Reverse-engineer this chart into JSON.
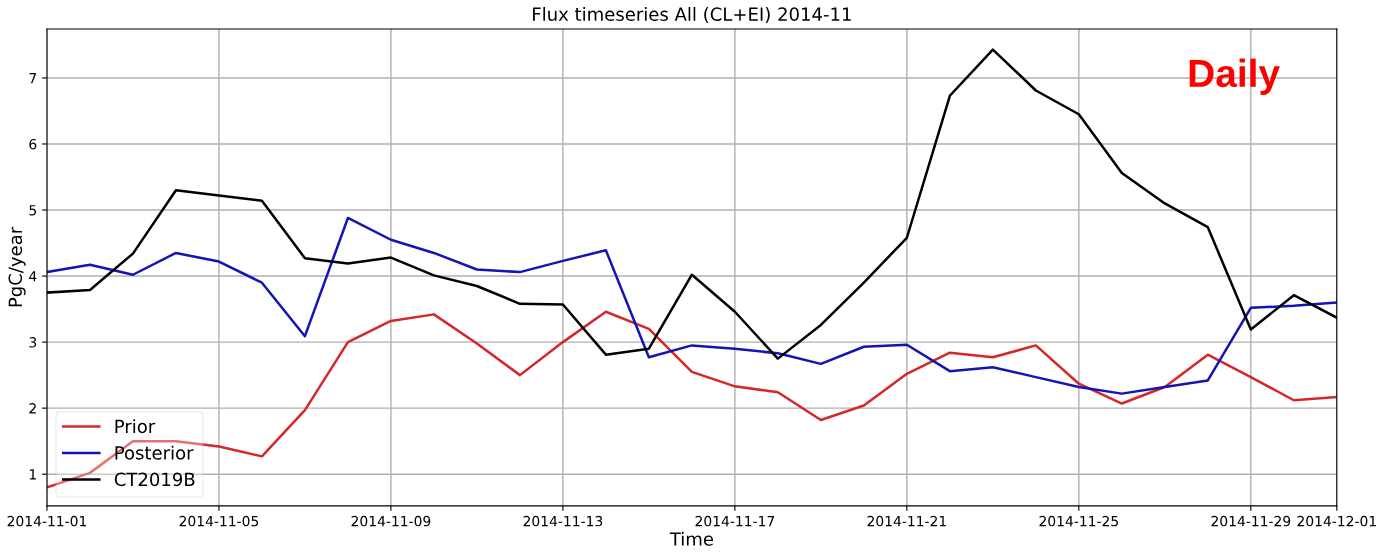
{
  "chart_data": {
    "type": "line",
    "title": "Flux timeseries All (CL+EI) 2014-11",
    "xlabel": "Time",
    "ylabel": "PgC/year",
    "x": [
      "2014-11-01",
      "2014-11-02",
      "2014-11-03",
      "2014-11-04",
      "2014-11-05",
      "2014-11-06",
      "2014-11-07",
      "2014-11-08",
      "2014-11-09",
      "2014-11-10",
      "2014-11-11",
      "2014-11-12",
      "2014-11-13",
      "2014-11-14",
      "2014-11-15",
      "2014-11-16",
      "2014-11-17",
      "2014-11-18",
      "2014-11-19",
      "2014-11-20",
      "2014-11-21",
      "2014-11-22",
      "2014-11-23",
      "2014-11-24",
      "2014-11-25",
      "2014-11-26",
      "2014-11-27",
      "2014-11-28",
      "2014-11-29",
      "2014-11-30",
      "2014-12-01"
    ],
    "series": [
      {
        "name": "Prior",
        "color": "#d62728",
        "values": [
          0.8,
          1.02,
          1.5,
          1.5,
          1.42,
          1.27,
          1.97,
          3.0,
          3.32,
          3.42,
          2.98,
          2.5,
          3.0,
          3.46,
          3.2,
          2.55,
          2.33,
          2.24,
          1.82,
          2.04,
          2.52,
          2.84,
          2.77,
          2.95,
          2.37,
          2.07,
          2.32,
          2.81,
          2.47,
          2.12,
          2.17
        ]
      },
      {
        "name": "Posterior",
        "color": "#1414b4",
        "values": [
          4.06,
          4.17,
          4.02,
          4.35,
          4.22,
          3.9,
          3.09,
          4.88,
          4.55,
          4.35,
          4.1,
          4.06,
          4.23,
          4.39,
          2.77,
          2.95,
          2.9,
          2.83,
          2.67,
          2.93,
          2.96,
          2.56,
          2.62,
          2.47,
          2.32,
          2.22,
          2.32,
          2.42,
          3.52,
          3.55,
          3.6
        ]
      },
      {
        "name": "CT2019B",
        "color": "#000000",
        "values": [
          3.75,
          3.79,
          4.34,
          5.3,
          5.22,
          5.14,
          4.27,
          4.19,
          4.28,
          4.01,
          3.85,
          3.58,
          3.57,
          2.81,
          2.9,
          4.02,
          3.46,
          2.75,
          3.26,
          3.9,
          4.58,
          6.73,
          7.43,
          6.81,
          6.45,
          5.56,
          5.1,
          4.74,
          3.19,
          3.71,
          3.37
        ]
      }
    ],
    "xlim": [
      "2014-11-01",
      "2014-12-01"
    ],
    "xticks": [
      "2014-11-01",
      "2014-11-05",
      "2014-11-09",
      "2014-11-13",
      "2014-11-17",
      "2014-11-21",
      "2014-11-25",
      "2014-11-29",
      "2014-12-01"
    ],
    "ylim": [
      0.52,
      7.74
    ],
    "yticks": [
      1,
      2,
      3,
      4,
      5,
      6,
      7
    ],
    "grid": true,
    "legend": "bottom left",
    "line_style": "solid",
    "marker": "none",
    "annotations": [
      "Daily"
    ]
  }
}
